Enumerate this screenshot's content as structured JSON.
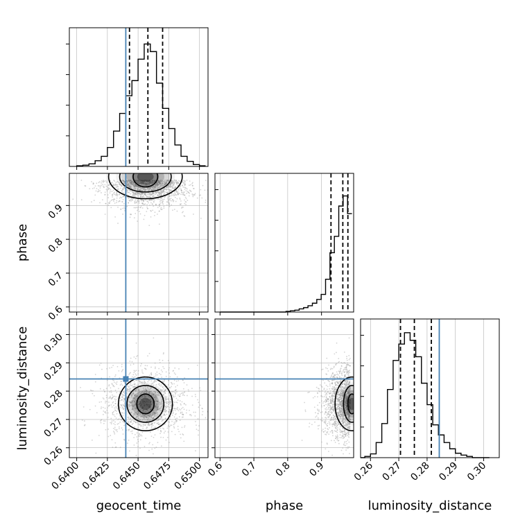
{
  "chart_data": {
    "type": "corner",
    "parameters": [
      "geocent_time",
      "phase",
      "luminosity_distance"
    ],
    "axis_labels": {
      "geocent_time": "geocent_time",
      "phase": "phase",
      "luminosity_distance": "luminosity_distance"
    },
    "ranges": {
      "geocent_time": [
        0.6394,
        0.6507
      ],
      "phase": [
        0.585,
        0.995
      ],
      "luminosity_distance": [
        0.2565,
        0.3055
      ]
    },
    "ticks": {
      "geocent_time": [
        0.64,
        0.6425,
        0.645,
        0.6475,
        0.65
      ],
      "phase": [
        0.6,
        0.7,
        0.8,
        0.9
      ],
      "luminosity_distance": [
        0.26,
        0.27,
        0.28,
        0.29,
        0.3
      ]
    },
    "tick_labels": {
      "geocent_time": [
        "0.6400",
        "0.6425",
        "0.6450",
        "0.6475",
        "0.6500"
      ],
      "phase": [
        "0.6",
        "0.7",
        "0.8",
        "0.9"
      ],
      "luminosity_distance": [
        "0.26",
        "0.27",
        "0.28",
        "0.29",
        "0.30"
      ]
    },
    "truths": {
      "geocent_time": 0.644,
      "luminosity_distance": 0.2843
    },
    "quantiles": {
      "geocent_time": [
        0.6443,
        0.6458,
        0.647
      ],
      "phase": [
        0.928,
        0.963,
        0.978
      ],
      "luminosity_distance": [
        0.2706,
        0.2755,
        0.2815
      ]
    },
    "histograms": {
      "geocent_time": {
        "edges": [
          0.64,
          0.6405,
          0.641,
          0.6415,
          0.642,
          0.6425,
          0.643,
          0.6435,
          0.644,
          0.6445,
          0.645,
          0.6455,
          0.646,
          0.6465,
          0.647,
          0.6475,
          0.648,
          0.6485,
          0.649,
          0.6495,
          0.65,
          0.6505
        ],
        "counts": [
          0.005,
          0.01,
          0.02,
          0.045,
          0.08,
          0.15,
          0.28,
          0.42,
          0.56,
          0.68,
          0.85,
          0.97,
          0.91,
          0.66,
          0.46,
          0.3,
          0.17,
          0.08,
          0.04,
          0.015,
          0.005
        ]
      },
      "phase": {
        "edges": [
          0.6,
          0.613,
          0.626,
          0.639,
          0.652,
          0.665,
          0.678,
          0.691,
          0.704,
          0.717,
          0.73,
          0.743,
          0.756,
          0.769,
          0.782,
          0.795,
          0.808,
          0.821,
          0.834,
          0.847,
          0.86,
          0.873,
          0.886,
          0.899,
          0.912,
          0.925,
          0.938,
          0.951,
          0.964,
          0.977,
          0.99
        ],
        "counts": [
          0.0,
          0.0,
          0.0,
          0.0,
          0.0,
          0.0,
          0.0,
          0.0,
          0.0,
          0.0,
          0.0,
          0.0,
          0.0,
          0.0,
          0.0,
          0.005,
          0.01,
          0.015,
          0.025,
          0.035,
          0.05,
          0.07,
          0.1,
          0.14,
          0.26,
          0.47,
          0.6,
          0.84,
          0.92,
          0.78
        ]
      },
      "luminosity_distance": {
        "edges": [
          0.256,
          0.258,
          0.26,
          0.262,
          0.264,
          0.266,
          0.268,
          0.27,
          0.272,
          0.274,
          0.276,
          0.278,
          0.28,
          0.282,
          0.284,
          0.286,
          0.288,
          0.29,
          0.292,
          0.294,
          0.296,
          0.298,
          0.3,
          0.302
        ],
        "counts": [
          0.0,
          0.01,
          0.03,
          0.12,
          0.27,
          0.54,
          0.77,
          0.9,
          0.99,
          0.93,
          0.8,
          0.59,
          0.42,
          0.26,
          0.18,
          0.12,
          0.07,
          0.035,
          0.02,
          0.01,
          0.0,
          0.0,
          0.0
        ]
      }
    },
    "panels_2d": [
      {
        "x": "geocent_time",
        "y": "phase",
        "center": [
          0.6458,
          0.975
        ],
        "sigma": [
          0.0018,
          0.055
        ],
        "contour_levels": [
          [
            0.001,
            0.03
          ],
          [
            0.0021,
            0.045
          ],
          [
            0.003,
            0.065
          ]
        ],
        "density_max_at": [
          0.6456,
          0.985
        ]
      },
      {
        "x": "geocent_time",
        "y": "luminosity_distance",
        "center": [
          0.6456,
          0.2755
        ],
        "sigma": [
          0.0018,
          0.0065
        ],
        "contour_levels": [
          [
            0.0007,
            0.0035
          ],
          [
            0.0015,
            0.0065
          ],
          [
            0.0022,
            0.0095
          ]
        ],
        "density_max_at": [
          0.6456,
          0.2755
        ]
      },
      {
        "x": "phase",
        "y": "luminosity_distance",
        "center": [
          0.985,
          0.2755
        ],
        "sigma": [
          0.04,
          0.0065
        ],
        "contour_levels": [
          [
            0.012,
            0.0035
          ],
          [
            0.025,
            0.0065
          ],
          [
            0.05,
            0.0095
          ]
        ],
        "density_max_at": [
          0.99,
          0.2755
        ]
      }
    ],
    "grid": true,
    "colors": {
      "hist": "#000000",
      "quantile": "#000000",
      "truth": "#4682b4",
      "grid": "#b0b0b0",
      "scatter": "#9e9e9e",
      "density": "#000000"
    }
  }
}
